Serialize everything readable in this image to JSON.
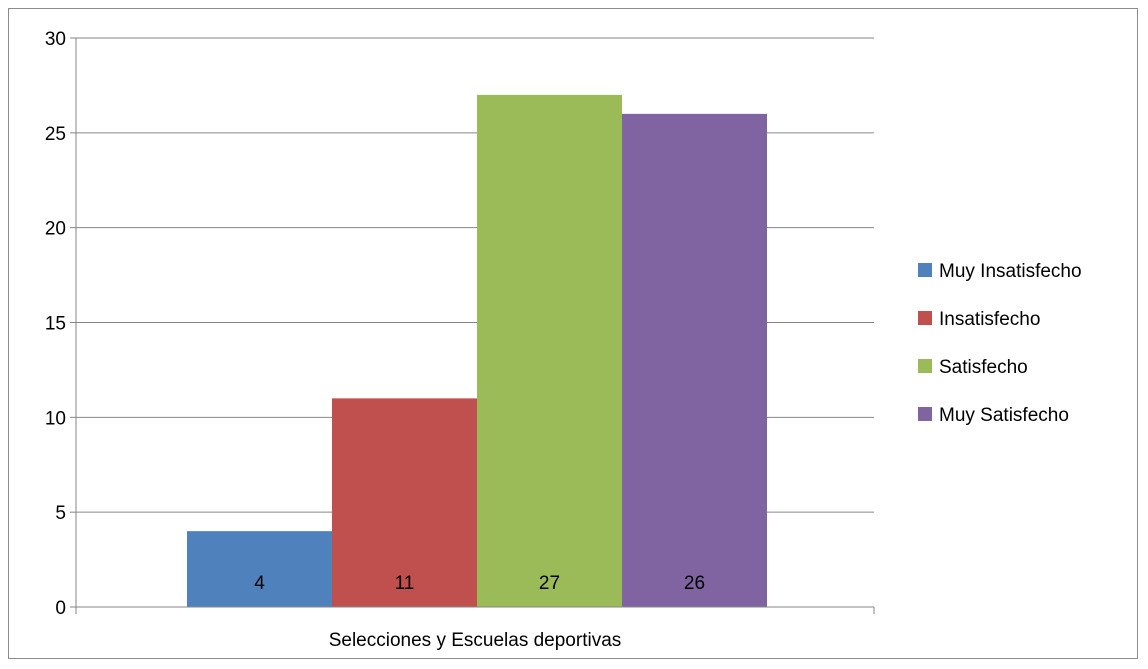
{
  "chart_data": {
    "type": "bar",
    "title": "",
    "xlabel": "",
    "ylabel": "",
    "categories": [
      "Selecciones y Escuelas deportivas"
    ],
    "series": [
      {
        "name": "Muy Insatisfecho",
        "values": [
          4
        ],
        "color": "#4f81bd"
      },
      {
        "name": "Insatisfecho",
        "values": [
          11
        ],
        "color": "#c0504d"
      },
      {
        "name": "Satisfecho",
        "values": [
          27
        ],
        "color": "#9bbb59"
      },
      {
        "name": "Muy Satisfecho",
        "values": [
          26
        ],
        "color": "#8064a2"
      }
    ],
    "ylim": [
      0,
      30
    ],
    "yticks": [
      0,
      5,
      10,
      15,
      20,
      25,
      30
    ],
    "grid": true,
    "legend_position": "right",
    "data_labels": true
  }
}
